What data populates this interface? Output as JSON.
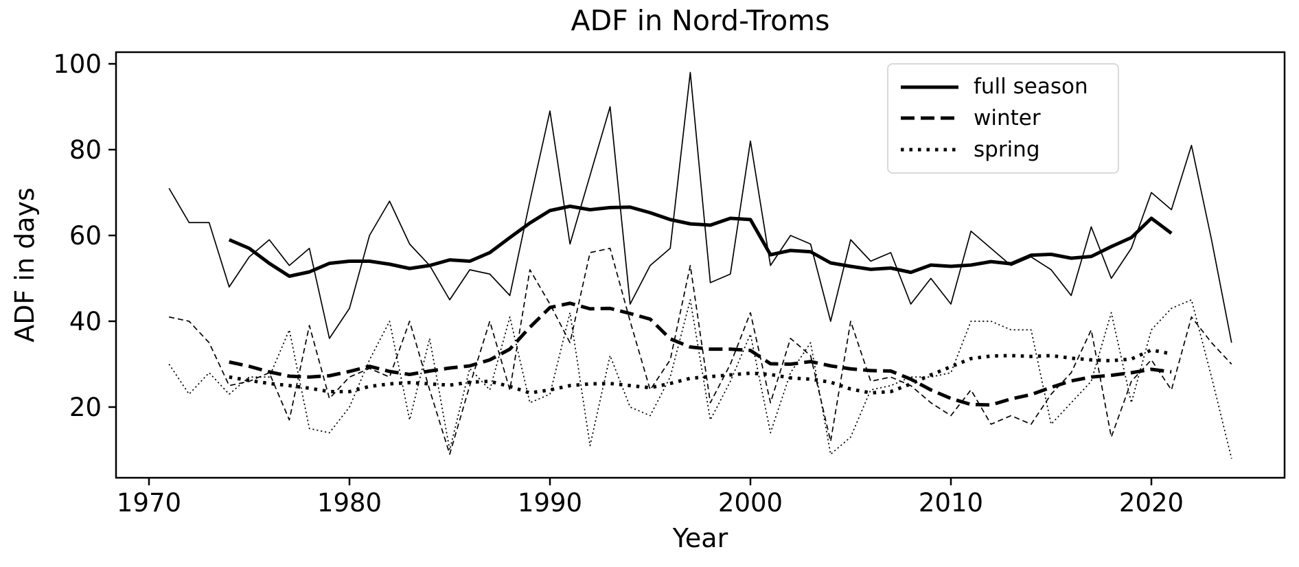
{
  "chart_data": {
    "type": "line",
    "title": "ADF in Nord-Troms",
    "xlabel": "Year",
    "ylabel": "ADF in days",
    "x_ticks": [
      1970,
      1980,
      1990,
      2000,
      2010,
      2020
    ],
    "y_ticks": [
      20,
      40,
      60,
      80,
      100
    ],
    "xlim": [
      1968.4,
      2026.6
    ],
    "ylim": [
      3.5,
      102.7
    ],
    "grid": false,
    "legend_position": "upper right",
    "line_color": "#000000",
    "background_color": "#ffffff",
    "legend_frame_color": "#d9d9d9",
    "series": [
      {
        "name": "full season",
        "linestyle": "solid",
        "annual": {
          "start_year": 1971,
          "end_year": 2024,
          "values": [
            71,
            63,
            63,
            48,
            55,
            59,
            53,
            57,
            36,
            43,
            60,
            68,
            58,
            53,
            45,
            52,
            51,
            46,
            68,
            89,
            58,
            74,
            90,
            44,
            53,
            57,
            98,
            49,
            51,
            82,
            53,
            60,
            58,
            40,
            59,
            54,
            56,
            44,
            50,
            44,
            61,
            57,
            53,
            55,
            52,
            46,
            62,
            50,
            57,
            70,
            66,
            81,
            59,
            35
          ]
        },
        "smoothed": {
          "start_year": 1974,
          "end_year": 2021,
          "values": [
            59,
            57,
            53.5,
            50.5,
            51.5,
            53.5,
            54,
            54,
            53.3,
            52.3,
            53,
            54.3,
            54,
            56,
            59.5,
            62.9,
            65.8,
            66.8,
            66,
            66.5,
            66.6,
            65.3,
            63.7,
            62.7,
            62.4,
            64,
            63.7,
            55.5,
            56.5,
            56.2,
            53.6,
            52.8,
            52.1,
            52.4,
            51.4,
            53.1,
            52.8,
            53.1,
            53.9,
            53.4,
            55.4,
            55.6,
            54.7,
            55.1,
            57.4,
            59.5,
            64,
            60.5
          ]
        }
      },
      {
        "name": "winter",
        "linestyle": "dashed",
        "annual": {
          "start_year": 1971,
          "end_year": 2024,
          "values": [
            41,
            40,
            35,
            25,
            26,
            28,
            17,
            39,
            22,
            27,
            29,
            27,
            40,
            24,
            9,
            25,
            40,
            24,
            52,
            44,
            35,
            56,
            57,
            40,
            24,
            31,
            53,
            21,
            30,
            42,
            21,
            36,
            32,
            12,
            40,
            26,
            27,
            25,
            21,
            18,
            24,
            16,
            18,
            16,
            23,
            28,
            38,
            13,
            26,
            31,
            24,
            41,
            35,
            30
          ]
        },
        "smoothed": {
          "start_year": 1974,
          "end_year": 2021,
          "values": [
            30.5,
            29.5,
            28.2,
            27.2,
            27,
            27.3,
            28.3,
            29.5,
            28.3,
            27.6,
            28.4,
            29.1,
            29.6,
            31,
            33.5,
            38.6,
            43.2,
            44.2,
            42.9,
            43,
            41.8,
            40.5,
            35.9,
            34,
            33.5,
            33.5,
            33.2,
            30.1,
            30,
            30.6,
            29.6,
            28.9,
            28.5,
            28.4,
            26.5,
            24,
            22,
            20.6,
            20.5,
            21.9,
            22.9,
            24.6,
            26.1,
            27,
            27.4,
            28,
            28.8,
            28.2
          ]
        }
      },
      {
        "name": "spring",
        "linestyle": "dotted",
        "annual": {
          "start_year": 1971,
          "end_year": 2024,
          "values": [
            30,
            23,
            28,
            23,
            27,
            27,
            38,
            15,
            14,
            20,
            31,
            40,
            17,
            36,
            10,
            29,
            24,
            41,
            21,
            23,
            42,
            11,
            32,
            20,
            18,
            27,
            45,
            17,
            26,
            37,
            14,
            28,
            35,
            9,
            13,
            24,
            25,
            27,
            27,
            28,
            40,
            40,
            38,
            38,
            16,
            21,
            26,
            42,
            21,
            38,
            43,
            45,
            27,
            8
          ]
        },
        "smoothed": {
          "start_year": 1974,
          "end_year": 2021,
          "values": [
            27,
            26.2,
            25.5,
            25,
            24.4,
            23.6,
            23.6,
            24.8,
            25.4,
            25.7,
            25.4,
            25.1,
            25.8,
            26,
            24.8,
            23.3,
            24,
            25,
            25.4,
            25.5,
            25,
            24.5,
            25.5,
            26.7,
            27.1,
            27.5,
            27.9,
            27.6,
            26.8,
            26.5,
            25.8,
            24.2,
            23.3,
            23.6,
            25.4,
            27.5,
            29.4,
            31.3,
            31.9,
            32,
            31.8,
            32,
            31.4,
            31,
            30.8,
            31.2,
            33.3,
            32.4
          ]
        }
      }
    ]
  }
}
